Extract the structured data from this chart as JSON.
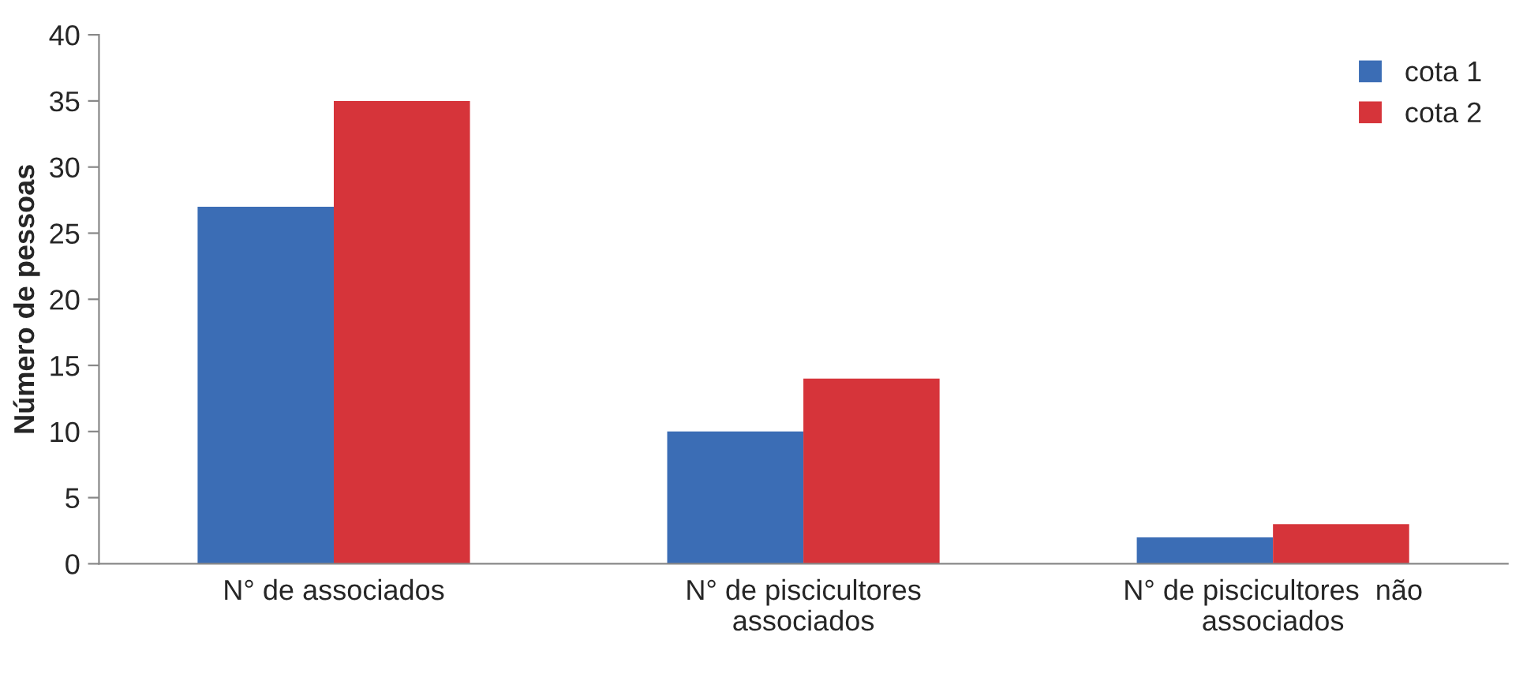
{
  "chart_data": {
    "type": "bar",
    "ylabel": "Número de pessoas",
    "categories": [
      "N° de associados",
      "N° de piscicultores\nassociados",
      "N° de piscicultores  não\nassociados"
    ],
    "series": [
      {
        "name": "cota 1",
        "color": "#3b6db5",
        "values": [
          27,
          10,
          2
        ]
      },
      {
        "name": "cota 2",
        "color": "#d6343a",
        "values": [
          35,
          14,
          3
        ]
      }
    ],
    "ylim": [
      0,
      40
    ],
    "yticks": [
      0,
      5,
      10,
      15,
      20,
      25,
      30,
      35,
      40
    ],
    "grid": false,
    "legend": "top right"
  }
}
